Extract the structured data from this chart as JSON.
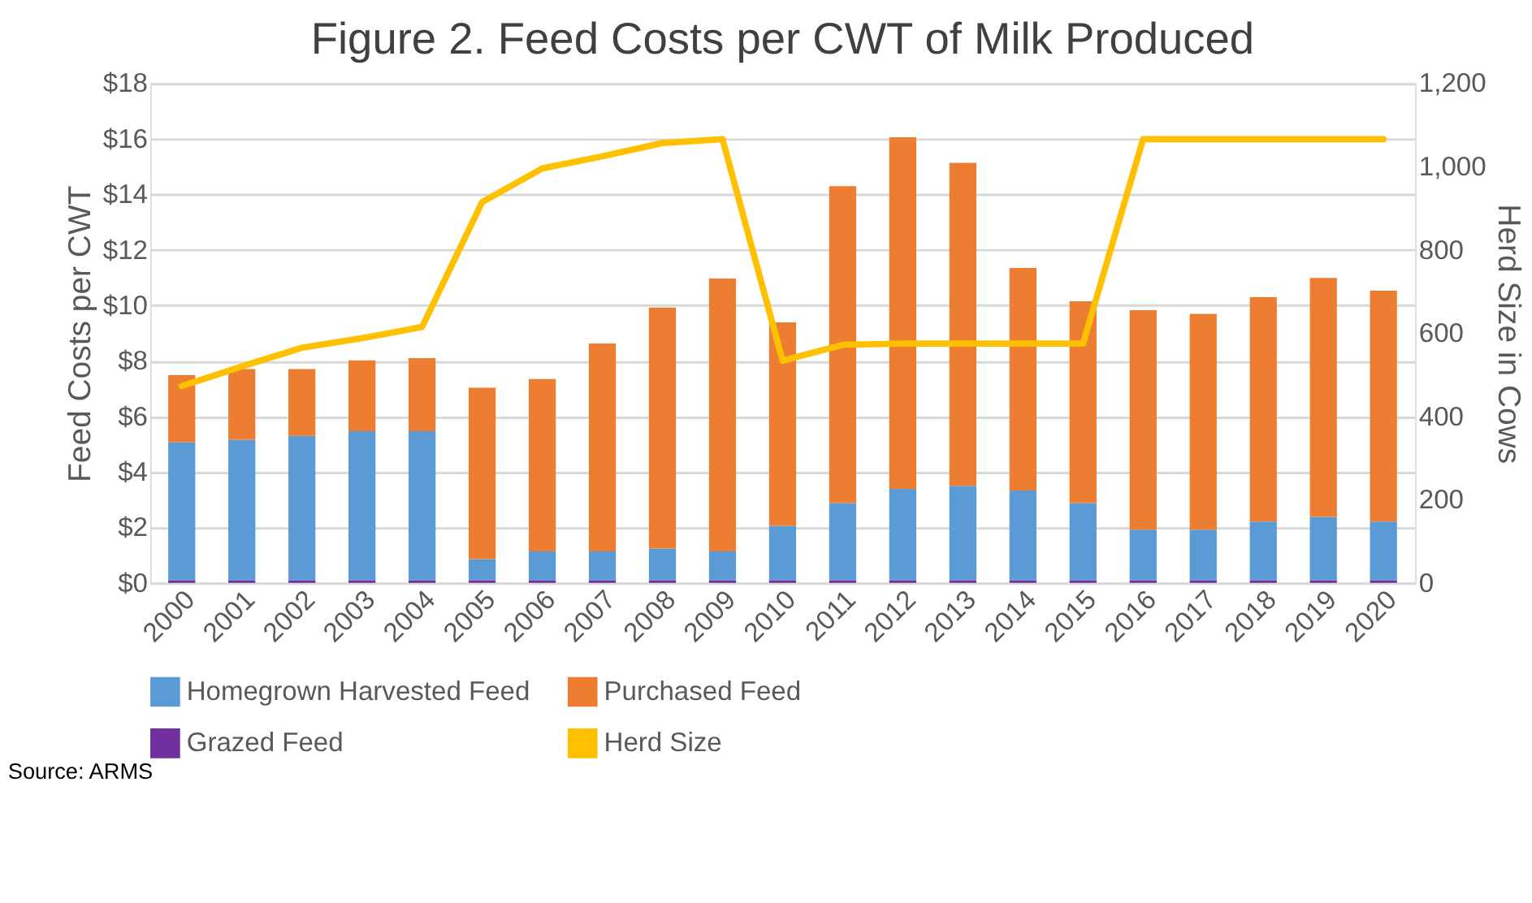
{
  "chart_data": {
    "type": "bar",
    "title": "Figure 2. Feed Costs per CWT of Milk Produced",
    "ylabel": "Feed Costs per CWT",
    "y2label": "Herd Size in Cows",
    "categories": [
      "2000",
      "2001",
      "2002",
      "2003",
      "2004",
      "2005",
      "2006",
      "2007",
      "2008",
      "2009",
      "2010",
      "2011",
      "2012",
      "2013",
      "2014",
      "2015",
      "2016",
      "2017",
      "2018",
      "2019",
      "2020"
    ],
    "stacked": true,
    "series": [
      {
        "name": "Grazed Feed",
        "color": "#7030a0",
        "values": [
          0.1,
          0.1,
          0.1,
          0.1,
          0.1,
          0.1,
          0.1,
          0.1,
          0.1,
          0.1,
          0.1,
          0.1,
          0.1,
          0.1,
          0.1,
          0.1,
          0.1,
          0.1,
          0.1,
          0.1,
          0.1
        ]
      },
      {
        "name": "Homegrown Harvested Feed",
        "color": "#5b9bd5",
        "values": [
          4.97,
          5.06,
          5.2,
          5.37,
          5.37,
          0.76,
          1.04,
          1.04,
          1.14,
          1.04,
          1.96,
          2.78,
          3.29,
          3.4,
          3.23,
          2.78,
          1.82,
          1.82,
          2.11,
          2.28,
          2.11
        ]
      },
      {
        "name": "Purchased Feed",
        "color": "#ed7d31",
        "values": [
          2.42,
          2.55,
          2.41,
          2.55,
          2.63,
          6.17,
          6.21,
          7.49,
          8.68,
          9.83,
          7.33,
          11.42,
          12.67,
          11.64,
          8.02,
          7.27,
          7.91,
          7.78,
          8.09,
          8.61,
          8.32
        ]
      },
      {
        "name": "Herd Size",
        "color": "#ffc000",
        "type": "line",
        "axis": "y2",
        "values": [
          473,
          520,
          565,
          588,
          615,
          915,
          996,
          1025,
          1057,
          1066,
          534,
          572,
          575,
          575,
          575,
          575,
          1066,
          1066,
          1066,
          1066,
          1066
        ]
      }
    ],
    "ylim": [
      0,
      18
    ],
    "yticks": [
      {
        "value": 0,
        "label": "$0"
      },
      {
        "value": 2,
        "label": "$2"
      },
      {
        "value": 4,
        "label": "$4"
      },
      {
        "value": 6,
        "label": "$6"
      },
      {
        "value": 8,
        "label": "$8"
      },
      {
        "value": 10,
        "label": "$10"
      },
      {
        "value": 12,
        "label": "$12"
      },
      {
        "value": 14,
        "label": "$14"
      },
      {
        "value": 16,
        "label": "$16"
      },
      {
        "value": 18,
        "label": "$18"
      }
    ],
    "y2lim": [
      0,
      1200
    ],
    "y2ticks": [
      0,
      200,
      400,
      600,
      800,
      {
        "value": 1000,
        "label": "1,000"
      },
      {
        "value": 1200,
        "label": "1,200"
      }
    ],
    "grid": "y",
    "legend": "bottom",
    "annotations": [
      "Source: ARMS"
    ]
  }
}
